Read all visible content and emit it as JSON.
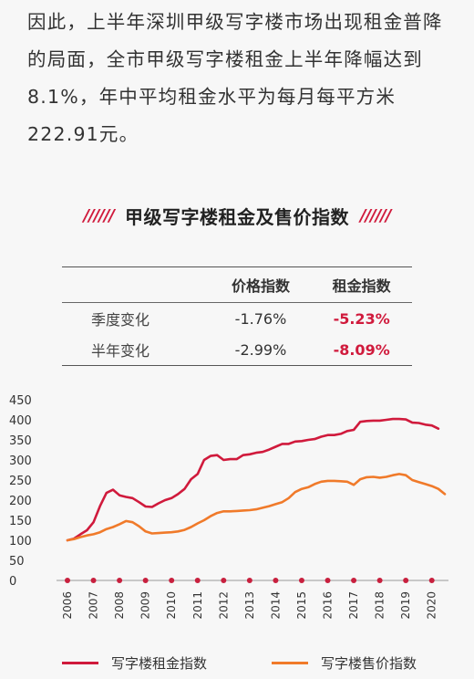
{
  "intro_text": "因此，上半年深圳甲级写字楼市场出现租金普降的局面，全市甲级写字楼租金上半年降幅达到8.1%，年中平均租金水平为每月每平方米222.91元。",
  "section": {
    "title": "甲级写字楼租金及售价指数",
    "slashes_left": "//////",
    "slashes_right": "//////"
  },
  "summary_table": {
    "headers": [
      "",
      "价格指数",
      "租金指数"
    ],
    "rows": [
      {
        "label": "季度变化",
        "price": "-1.76%",
        "rent": "-5.23%"
      },
      {
        "label": "半年变化",
        "price": "-2.99%",
        "rent": "-8.09%"
      }
    ]
  },
  "colors": {
    "rent": "#d01a3c",
    "price": "#f07a2a",
    "accent": "#d01a3c",
    "axis_dot": "#c8203e"
  },
  "chart_data": {
    "type": "line",
    "ylim": [
      0,
      450
    ],
    "yticks": [
      0,
      50,
      100,
      150,
      200,
      250,
      300,
      350,
      400,
      450
    ],
    "xlim": [
      2006,
      2020.5
    ],
    "xticks": [
      "2006",
      "2007",
      "2008",
      "2009",
      "2010",
      "2011",
      "2012",
      "2013",
      "2014",
      "2015",
      "2016",
      "2017",
      "2018",
      "2019",
      "2020"
    ],
    "series": [
      {
        "name": "写字楼租金指数",
        "color": "#d01a3c",
        "points": [
          [
            2006,
            100
          ],
          [
            2006.25,
            104
          ],
          [
            2006.5,
            115
          ],
          [
            2006.75,
            125
          ],
          [
            2007,
            145
          ],
          [
            2007.25,
            185
          ],
          [
            2007.5,
            218
          ],
          [
            2007.75,
            226
          ],
          [
            2008,
            212
          ],
          [
            2008.25,
            208
          ],
          [
            2008.5,
            205
          ],
          [
            2008.75,
            195
          ],
          [
            2009,
            184
          ],
          [
            2009.25,
            183
          ],
          [
            2009.5,
            192
          ],
          [
            2009.75,
            200
          ],
          [
            2010,
            205
          ],
          [
            2010.25,
            215
          ],
          [
            2010.5,
            228
          ],
          [
            2010.75,
            252
          ],
          [
            2011,
            265
          ],
          [
            2011.25,
            300
          ],
          [
            2011.5,
            310
          ],
          [
            2011.75,
            312
          ],
          [
            2012,
            300
          ],
          [
            2012.25,
            302
          ],
          [
            2012.5,
            302
          ],
          [
            2012.75,
            312
          ],
          [
            2013,
            314
          ],
          [
            2013.25,
            318
          ],
          [
            2013.5,
            320
          ],
          [
            2013.75,
            326
          ],
          [
            2014,
            333
          ],
          [
            2014.25,
            340
          ],
          [
            2014.5,
            340
          ],
          [
            2014.75,
            346
          ],
          [
            2015,
            347
          ],
          [
            2015.25,
            350
          ],
          [
            2015.5,
            352
          ],
          [
            2015.75,
            358
          ],
          [
            2016,
            362
          ],
          [
            2016.25,
            362
          ],
          [
            2016.5,
            365
          ],
          [
            2016.75,
            372
          ],
          [
            2017,
            375
          ],
          [
            2017.25,
            395
          ],
          [
            2017.5,
            397
          ],
          [
            2017.75,
            398
          ],
          [
            2018,
            398
          ],
          [
            2018.25,
            400
          ],
          [
            2018.5,
            402
          ],
          [
            2018.75,
            402
          ],
          [
            2019,
            401
          ],
          [
            2019.25,
            393
          ],
          [
            2019.5,
            392
          ],
          [
            2019.75,
            388
          ],
          [
            2020,
            386
          ],
          [
            2020.25,
            378
          ]
        ]
      },
      {
        "name": "写字楼售价指数",
        "color": "#f07a2a",
        "points": [
          [
            2006,
            100
          ],
          [
            2006.25,
            103
          ],
          [
            2006.5,
            108
          ],
          [
            2006.75,
            112
          ],
          [
            2007,
            115
          ],
          [
            2007.25,
            120
          ],
          [
            2007.5,
            128
          ],
          [
            2007.75,
            133
          ],
          [
            2008,
            140
          ],
          [
            2008.25,
            148
          ],
          [
            2008.5,
            145
          ],
          [
            2008.75,
            135
          ],
          [
            2009,
            122
          ],
          [
            2009.25,
            117
          ],
          [
            2009.5,
            118
          ],
          [
            2009.75,
            119
          ],
          [
            2010,
            120
          ],
          [
            2010.25,
            122
          ],
          [
            2010.5,
            126
          ],
          [
            2010.75,
            133
          ],
          [
            2011,
            142
          ],
          [
            2011.25,
            150
          ],
          [
            2011.5,
            160
          ],
          [
            2011.75,
            168
          ],
          [
            2012,
            172
          ],
          [
            2012.25,
            172
          ],
          [
            2012.5,
            173
          ],
          [
            2012.75,
            174
          ],
          [
            2013,
            175
          ],
          [
            2013.25,
            177
          ],
          [
            2013.5,
            181
          ],
          [
            2013.75,
            185
          ],
          [
            2014,
            190
          ],
          [
            2014.25,
            195
          ],
          [
            2014.5,
            205
          ],
          [
            2014.75,
            220
          ],
          [
            2015,
            228
          ],
          [
            2015.25,
            232
          ],
          [
            2015.5,
            240
          ],
          [
            2015.75,
            246
          ],
          [
            2016,
            248
          ],
          [
            2016.25,
            248
          ],
          [
            2016.5,
            247
          ],
          [
            2016.75,
            246
          ],
          [
            2017,
            238
          ],
          [
            2017.25,
            252
          ],
          [
            2017.5,
            257
          ],
          [
            2017.75,
            258
          ],
          [
            2018,
            256
          ],
          [
            2018.25,
            258
          ],
          [
            2018.5,
            262
          ],
          [
            2018.75,
            265
          ],
          [
            2019,
            262
          ],
          [
            2019.25,
            250
          ],
          [
            2019.5,
            245
          ],
          [
            2019.75,
            240
          ],
          [
            2020,
            235
          ],
          [
            2020.25,
            228
          ],
          [
            2020.5,
            215
          ]
        ]
      }
    ]
  }
}
